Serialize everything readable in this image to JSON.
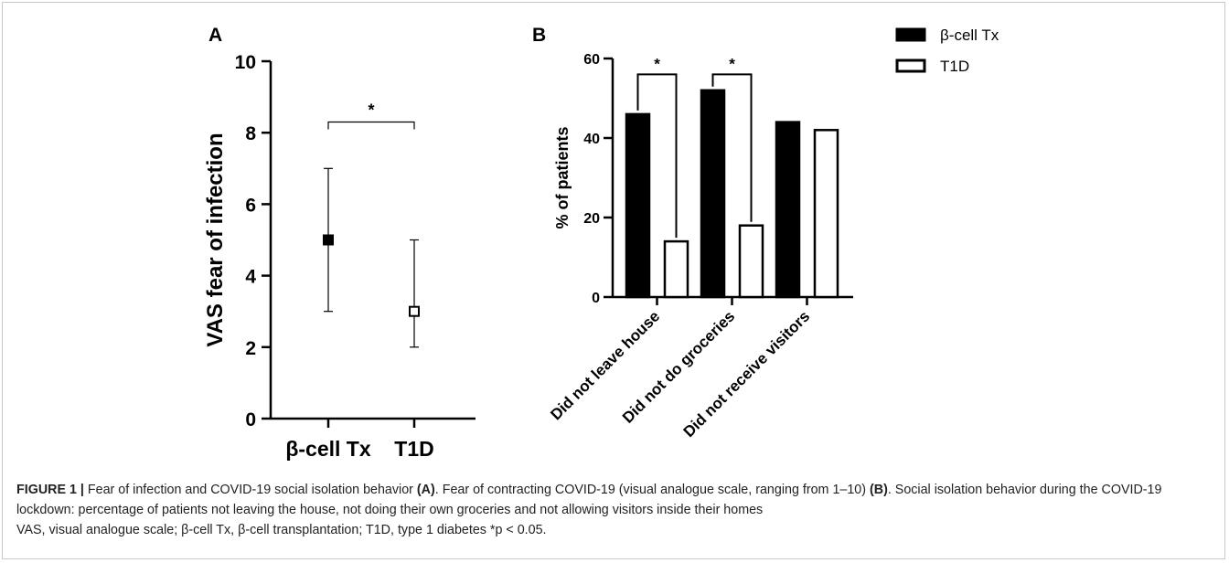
{
  "figure": {
    "caption_label": "FIGURE 1 |",
    "caption_line1": "Fear of infection and COVID-19 social isolation behavior ",
    "caption_ref_a": "(A)",
    "caption_line1b": ". Fear of contracting COVID-19 (visual analogue scale, ranging from 1–10) ",
    "caption_ref_b": "(B)",
    "caption_line1c": ". Social isolation behavior during the COVID-19 lockdown: percentage of patients not leaving the house, not doing their own groceries and not allowing visitors inside their homes",
    "caption_line2": "VAS, visual analogue scale; β-cell Tx, β-cell transplantation; T1D, type 1 diabetes *p < 0.05."
  },
  "chart_data": [
    {
      "panel": "A",
      "type": "scatter",
      "ylabel": "VAS fear of infection",
      "ylim": [
        0,
        10
      ],
      "yticks": [
        0,
        2,
        4,
        6,
        8,
        10
      ],
      "categories": [
        "β-cell Tx",
        "T1D"
      ],
      "series": [
        {
          "category": "β-cell Tx",
          "median": 5,
          "low": 3,
          "high": 7,
          "marker": "filled-square"
        },
        {
          "category": "T1D",
          "median": 3,
          "low": 2,
          "high": 5,
          "marker": "open-square"
        }
      ],
      "significance": [
        {
          "between": [
            "β-cell Tx",
            "T1D"
          ],
          "label": "*",
          "y": 8.3
        }
      ]
    },
    {
      "panel": "B",
      "type": "bar",
      "ylabel": "% of patients",
      "ylim": [
        0,
        60
      ],
      "yticks": [
        0,
        20,
        40,
        60
      ],
      "categories": [
        "Did not leave house",
        "Did not do groceries",
        "Did not receive visitors"
      ],
      "series": [
        {
          "name": "β-cell Tx",
          "values": [
            46,
            52,
            44
          ],
          "fill": "#000000"
        },
        {
          "name": "T1D",
          "values": [
            14,
            18,
            42
          ],
          "fill": "#ffffff"
        }
      ],
      "significance": [
        {
          "category": "Did not leave house",
          "label": "*",
          "y": 56
        },
        {
          "category": "Did not do groceries",
          "label": "*",
          "y": 56
        }
      ],
      "legend_position": "top-right"
    }
  ]
}
